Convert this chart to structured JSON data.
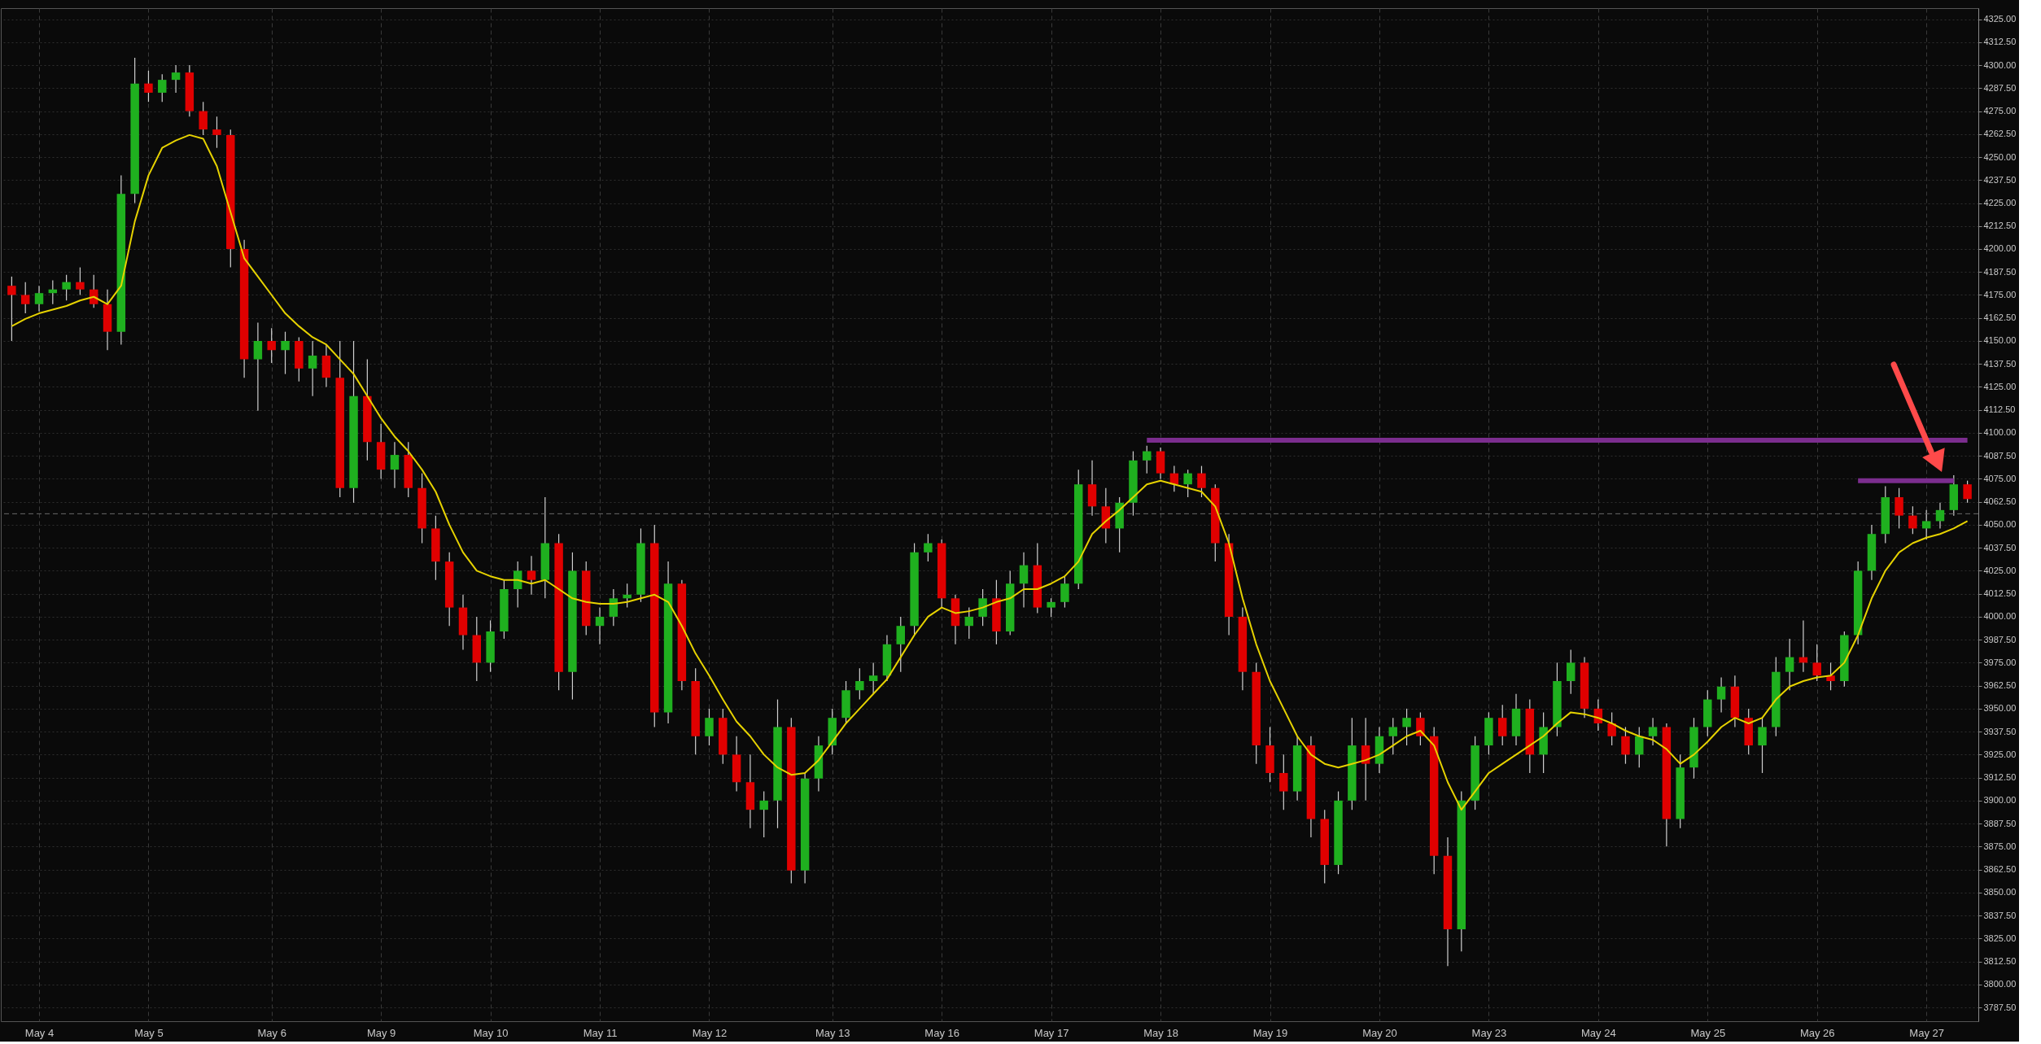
{
  "chart_data": {
    "type": "candlestick",
    "categories": [
      null,
      null,
      "May 4",
      null,
      null,
      null,
      null,
      null,
      null,
      null,
      "May 5",
      null,
      null,
      null,
      null,
      null,
      null,
      null,
      null,
      "May 6",
      null,
      null,
      null,
      null,
      null,
      null,
      null,
      "May 9",
      null,
      null,
      null,
      null,
      null,
      null,
      null,
      "May 10",
      null,
      null,
      null,
      null,
      null,
      null,
      null,
      "May 11",
      null,
      null,
      null,
      null,
      null,
      null,
      null,
      "May 12",
      null,
      null,
      null,
      null,
      null,
      null,
      null,
      null,
      "May 13",
      null,
      null,
      null,
      null,
      null,
      null,
      null,
      "May 16",
      null,
      null,
      null,
      null,
      null,
      null,
      null,
      "May 17",
      null,
      null,
      null,
      null,
      null,
      null,
      null,
      "May 18",
      null,
      null,
      null,
      null,
      null,
      null,
      null,
      "May 19",
      null,
      null,
      null,
      null,
      null,
      null,
      null,
      "May 20",
      null,
      null,
      null,
      null,
      null,
      null,
      null,
      "May 23",
      null,
      null,
      null,
      null,
      null,
      null,
      null,
      "May 24",
      null,
      null,
      null,
      null,
      null,
      null,
      null,
      "May 25",
      null,
      null,
      null,
      null,
      null,
      null,
      null,
      "May 26",
      null,
      null,
      null,
      null,
      null,
      null,
      null,
      "May 27",
      null,
      null,
      null
    ],
    "ohlc": [
      [
        4180,
        4185,
        4150,
        4175
      ],
      [
        4175,
        4182,
        4165,
        4170
      ],
      [
        4170,
        4180,
        4166,
        4176
      ],
      [
        4176,
        4183,
        4170,
        4178
      ],
      [
        4178,
        4186,
        4172,
        4182
      ],
      [
        4182,
        4190,
        4175,
        4178
      ],
      [
        4178,
        4186,
        4168,
        4170
      ],
      [
        4170,
        4178,
        4145,
        4155
      ],
      [
        4155,
        4240,
        4148,
        4230
      ],
      [
        4230,
        4304,
        4225,
        4290
      ],
      [
        4290,
        4297,
        4280,
        4285
      ],
      [
        4285,
        4295,
        4280,
        4292
      ],
      [
        4292,
        4300,
        4285,
        4296
      ],
      [
        4296,
        4300,
        4272,
        4275
      ],
      [
        4275,
        4280,
        4262,
        4265
      ],
      [
        4265,
        4272,
        4255,
        4262
      ],
      [
        4262,
        4265,
        4190,
        4200
      ],
      [
        4200,
        4205,
        4130,
        4140
      ],
      [
        4140,
        4160,
        4112,
        4150
      ],
      [
        4150,
        4157,
        4138,
        4145
      ],
      [
        4145,
        4155,
        4132,
        4150
      ],
      [
        4150,
        4152,
        4128,
        4135
      ],
      [
        4135,
        4150,
        4120,
        4142
      ],
      [
        4142,
        4148,
        4125,
        4130
      ],
      [
        4130,
        4150,
        4065,
        4070
      ],
      [
        4070,
        4150,
        4062,
        4120
      ],
      [
        4120,
        4140,
        4085,
        4095
      ],
      [
        4095,
        4105,
        4075,
        4080
      ],
      [
        4080,
        4095,
        4070,
        4088
      ],
      [
        4088,
        4095,
        4065,
        4070
      ],
      [
        4070,
        4078,
        4040,
        4048
      ],
      [
        4048,
        4055,
        4020,
        4030
      ],
      [
        4030,
        4035,
        3995,
        4005
      ],
      [
        4005,
        4012,
        3982,
        3990
      ],
      [
        3990,
        4000,
        3965,
        3975
      ],
      [
        3975,
        3998,
        3970,
        3992
      ],
      [
        3992,
        4020,
        3988,
        4015
      ],
      [
        4015,
        4030,
        4005,
        4025
      ],
      [
        4025,
        4033,
        4012,
        4020
      ],
      [
        4020,
        4065,
        4010,
        4040
      ],
      [
        4040,
        4045,
        3960,
        3970
      ],
      [
        3970,
        4035,
        3955,
        4025
      ],
      [
        4025,
        4030,
        3990,
        3995
      ],
      [
        3995,
        4005,
        3985,
        4000
      ],
      [
        4000,
        4015,
        3995,
        4010
      ],
      [
        4010,
        4018,
        4005,
        4012
      ],
      [
        4012,
        4048,
        4008,
        4040
      ],
      [
        4040,
        4050,
        3940,
        3948
      ],
      [
        3948,
        4030,
        3942,
        4018
      ],
      [
        4018,
        4020,
        3960,
        3965
      ],
      [
        3965,
        3972,
        3925,
        3935
      ],
      [
        3935,
        3950,
        3930,
        3945
      ],
      [
        3945,
        3950,
        3920,
        3925
      ],
      [
        3925,
        3935,
        3905,
        3910
      ],
      [
        3910,
        3925,
        3885,
        3895
      ],
      [
        3895,
        3905,
        3880,
        3900
      ],
      [
        3900,
        3955,
        3885,
        3940
      ],
      [
        3940,
        3945,
        3855,
        3862
      ],
      [
        3862,
        3915,
        3855,
        3912
      ],
      [
        3912,
        3935,
        3905,
        3930
      ],
      [
        3930,
        3950,
        3925,
        3945
      ],
      [
        3945,
        3965,
        3942,
        3960
      ],
      [
        3960,
        3972,
        3955,
        3965
      ],
      [
        3965,
        3975,
        3958,
        3968
      ],
      [
        3968,
        3990,
        3965,
        3985
      ],
      [
        3985,
        4000,
        3970,
        3995
      ],
      [
        3995,
        4040,
        3990,
        4035
      ],
      [
        4035,
        4045,
        4030,
        4040
      ],
      [
        4040,
        4042,
        4005,
        4010
      ],
      [
        4010,
        4012,
        3985,
        3995
      ],
      [
        3995,
        4005,
        3988,
        4000
      ],
      [
        4000,
        4015,
        3995,
        4010
      ],
      [
        4010,
        4020,
        3985,
        3992
      ],
      [
        3992,
        4025,
        3990,
        4018
      ],
      [
        4018,
        4035,
        4005,
        4028
      ],
      [
        4028,
        4040,
        4002,
        4005
      ],
      [
        4005,
        4010,
        4000,
        4008
      ],
      [
        4008,
        4022,
        4005,
        4018
      ],
      [
        4018,
        4080,
        4015,
        4072
      ],
      [
        4072,
        4085,
        4055,
        4060
      ],
      [
        4060,
        4070,
        4040,
        4048
      ],
      [
        4048,
        4065,
        4035,
        4062
      ],
      [
        4062,
        4090,
        4055,
        4085
      ],
      [
        4085,
        4093,
        4078,
        4090
      ],
      [
        4090,
        4092,
        4075,
        4078
      ],
      [
        4078,
        4082,
        4068,
        4072
      ],
      [
        4072,
        4080,
        4065,
        4078
      ],
      [
        4078,
        4082,
        4065,
        4070
      ],
      [
        4070,
        4072,
        4030,
        4040
      ],
      [
        4040,
        4045,
        3990,
        4000
      ],
      [
        4000,
        4005,
        3960,
        3970
      ],
      [
        3970,
        3975,
        3920,
        3930
      ],
      [
        3930,
        3940,
        3910,
        3915
      ],
      [
        3915,
        3925,
        3895,
        3905
      ],
      [
        3905,
        3935,
        3900,
        3930
      ],
      [
        3930,
        3935,
        3880,
        3890
      ],
      [
        3890,
        3895,
        3855,
        3865
      ],
      [
        3865,
        3905,
        3860,
        3900
      ],
      [
        3900,
        3945,
        3895,
        3930
      ],
      [
        3930,
        3945,
        3900,
        3920
      ],
      [
        3920,
        3940,
        3915,
        3935
      ],
      [
        3935,
        3945,
        3925,
        3940
      ],
      [
        3940,
        3950,
        3930,
        3945
      ],
      [
        3945,
        3948,
        3930,
        3935
      ],
      [
        3935,
        3940,
        3860,
        3870
      ],
      [
        3870,
        3880,
        3810,
        3830
      ],
      [
        3830,
        3905,
        3818,
        3900
      ],
      [
        3900,
        3935,
        3895,
        3930
      ],
      [
        3930,
        3948,
        3925,
        3945
      ],
      [
        3945,
        3952,
        3930,
        3935
      ],
      [
        3935,
        3958,
        3930,
        3950
      ],
      [
        3950,
        3955,
        3915,
        3925
      ],
      [
        3925,
        3948,
        3915,
        3940
      ],
      [
        3940,
        3975,
        3935,
        3965
      ],
      [
        3965,
        3982,
        3958,
        3975
      ],
      [
        3975,
        3978,
        3945,
        3950
      ],
      [
        3950,
        3955,
        3938,
        3942
      ],
      [
        3942,
        3948,
        3930,
        3935
      ],
      [
        3935,
        3940,
        3920,
        3925
      ],
      [
        3925,
        3940,
        3918,
        3935
      ],
      [
        3935,
        3945,
        3930,
        3940
      ],
      [
        3940,
        3942,
        3875,
        3890
      ],
      [
        3890,
        3925,
        3885,
        3918
      ],
      [
        3918,
        3945,
        3912,
        3940
      ],
      [
        3940,
        3960,
        3935,
        3955
      ],
      [
        3955,
        3967,
        3948,
        3962
      ],
      [
        3962,
        3968,
        3940,
        3945
      ],
      [
        3945,
        3950,
        3925,
        3930
      ],
      [
        3930,
        3945,
        3915,
        3940
      ],
      [
        3940,
        3978,
        3935,
        3970
      ],
      [
        3970,
        3988,
        3960,
        3978
      ],
      [
        3978,
        3998,
        3970,
        3975
      ],
      [
        3975,
        3985,
        3965,
        3968
      ],
      [
        3968,
        3975,
        3960,
        3965
      ],
      [
        3965,
        3992,
        3962,
        3990
      ],
      [
        3990,
        4030,
        3985,
        4025
      ],
      [
        4025,
        4050,
        4020,
        4045
      ],
      [
        4045,
        4071,
        4040,
        4065
      ],
      [
        4065,
        4070,
        4048,
        4055
      ],
      [
        4055,
        4060,
        4045,
        4048
      ],
      [
        4048,
        4058,
        4042,
        4052
      ],
      [
        4052,
        4062,
        4048,
        4058
      ],
      [
        4058,
        4077,
        4055,
        4072
      ],
      [
        4072,
        4074,
        4062,
        4064
      ]
    ],
    "series": [
      {
        "type": "line",
        "color": "#e6d200",
        "values": [
          4158,
          4162,
          4165,
          4167,
          4169,
          4172,
          4174,
          4170,
          4180,
          4215,
          4240,
          4255,
          4259,
          4262,
          4260,
          4245,
          4220,
          4195,
          4185,
          4175,
          4165,
          4158,
          4152,
          4148,
          4140,
          4132,
          4120,
          4108,
          4098,
          4090,
          4080,
          4068,
          4050,
          4035,
          4025,
          4022,
          4020,
          4020,
          4018,
          4020,
          4015,
          4010,
          4008,
          4007,
          4007,
          4008,
          4010,
          4012,
          4008,
          3995,
          3980,
          3968,
          3955,
          3943,
          3935,
          3925,
          3918,
          3914,
          3915,
          3922,
          3932,
          3942,
          3950,
          3958,
          3966,
          3978,
          3990,
          4000,
          4005,
          4002,
          4003,
          4005,
          4008,
          4010,
          4015,
          4015,
          4018,
          4022,
          4030,
          4045,
          4052,
          4058,
          4065,
          4072,
          4074,
          4072,
          4070,
          4068,
          4060,
          4040,
          4010,
          3985,
          3965,
          3950,
          3935,
          3925,
          3920,
          3918,
          3920,
          3922,
          3925,
          3930,
          3935,
          3938,
          3930,
          3910,
          3895,
          3905,
          3915,
          3920,
          3925,
          3930,
          3935,
          3942,
          3948,
          3947,
          3945,
          3942,
          3938,
          3935,
          3933,
          3928,
          3920,
          3925,
          3932,
          3940,
          3945,
          3942,
          3945,
          3955,
          3962,
          3965,
          3967,
          3968,
          3975,
          3990,
          4010,
          4025,
          4035,
          4040,
          4043,
          4045,
          4048,
          4052
        ]
      },
      {
        "type": "line",
        "color": "#7b2d8e",
        "values": [
          null,
          null,
          null,
          null,
          null,
          null,
          null,
          null,
          null,
          null,
          null,
          null,
          null,
          null,
          null,
          null,
          null,
          null,
          null,
          null,
          null,
          null,
          null,
          null,
          null,
          null,
          null,
          null,
          null,
          null,
          null,
          null,
          null,
          null,
          null,
          null,
          null,
          null,
          null,
          null,
          null,
          null,
          null,
          null,
          null,
          null,
          null,
          null,
          null,
          null,
          null,
          null,
          null,
          null,
          null,
          null,
          null,
          null,
          null,
          null,
          null,
          null,
          null,
          null,
          null,
          null,
          null,
          null,
          null,
          null,
          null,
          null,
          null,
          null,
          null,
          null,
          null,
          null,
          null,
          null,
          null,
          null,
          null,
          4096,
          4096,
          4096,
          4096,
          4096,
          4096,
          4096,
          4096,
          4096,
          4096,
          4096,
          4096,
          4096,
          4096,
          4096,
          4096,
          4096,
          4096,
          4096,
          4096,
          4096,
          4096,
          4096,
          4096,
          4096,
          4096,
          4096,
          4096,
          4096,
          4096,
          4096,
          4096,
          4096,
          4096,
          4096,
          4096,
          4096,
          4096,
          4096,
          4096,
          4096,
          4096,
          4096,
          4096,
          4096,
          4096,
          4096,
          4096,
          4096,
          4096,
          4096,
          4096,
          4096,
          4096,
          4096,
          4096,
          4096,
          4096,
          4096,
          4096,
          4096
        ]
      },
      {
        "type": "line",
        "color": "#7b2d8e",
        "values": [
          null,
          null,
          null,
          null,
          null,
          null,
          null,
          null,
          null,
          null,
          null,
          null,
          null,
          null,
          null,
          null,
          null,
          null,
          null,
          null,
          null,
          null,
          null,
          null,
          null,
          null,
          null,
          null,
          null,
          null,
          null,
          null,
          null,
          null,
          null,
          null,
          null,
          null,
          null,
          null,
          null,
          null,
          null,
          null,
          null,
          null,
          null,
          null,
          null,
          null,
          null,
          null,
          null,
          null,
          null,
          null,
          null,
          null,
          null,
          null,
          null,
          null,
          null,
          null,
          null,
          null,
          null,
          null,
          null,
          null,
          null,
          null,
          null,
          null,
          null,
          null,
          null,
          null,
          null,
          null,
          null,
          null,
          null,
          null,
          null,
          null,
          null,
          null,
          null,
          null,
          null,
          null,
          null,
          null,
          null,
          null,
          null,
          null,
          null,
          null,
          null,
          null,
          null,
          null,
          null,
          null,
          null,
          null,
          null,
          null,
          null,
          null,
          null,
          null,
          null,
          null,
          null,
          null,
          null,
          null,
          null,
          null,
          null,
          null,
          null,
          null,
          null,
          null,
          null,
          null,
          null,
          null,
          null,
          null,
          null,
          4074,
          4074,
          4074,
          4074,
          4074,
          4074,
          4074,
          4074,
          null
        ]
      }
    ],
    "ref_lines": [
      {
        "axis": "y",
        "value": 4056,
        "color": "#6a6a6a",
        "line_style": "dashed"
      }
    ],
    "ylim": [
      3780,
      4331
    ],
    "yticks": [
      {
        "value": 3787.5,
        "label": "3787.50"
      },
      {
        "value": 3800,
        "label": "3800.00"
      },
      {
        "value": 3812.5,
        "label": "3812.50"
      },
      {
        "value": 3825,
        "label": "3825.00"
      },
      {
        "value": 3837.5,
        "label": "3837.50"
      },
      {
        "value": 3850,
        "label": "3850.00"
      },
      {
        "value": 3862.5,
        "label": "3862.50"
      },
      {
        "value": 3875,
        "label": "3875.00"
      },
      {
        "value": 3887.5,
        "label": "3887.50"
      },
      {
        "value": 3900,
        "label": "3900.00"
      },
      {
        "value": 3912.5,
        "label": "3912.50"
      },
      {
        "value": 3925,
        "label": "3925.00"
      },
      {
        "value": 3937.5,
        "label": "3937.50"
      },
      {
        "value": 3950,
        "label": "3950.00"
      },
      {
        "value": 3962.5,
        "label": "3962.50"
      },
      {
        "value": 3975,
        "label": "3975.00"
      },
      {
        "value": 3987.5,
        "label": "3987.50"
      },
      {
        "value": 4000,
        "label": "4000.00"
      },
      {
        "value": 4012.5,
        "label": "4012.50"
      },
      {
        "value": 4025,
        "label": "4025.00"
      },
      {
        "value": 4037.5,
        "label": "4037.50"
      },
      {
        "value": 4050,
        "label": "4050.00"
      },
      {
        "value": 4062.5,
        "label": "4062.50"
      },
      {
        "value": 4075,
        "label": "4075.00"
      },
      {
        "value": 4087.5,
        "label": "4087.50"
      },
      {
        "value": 4100,
        "label": "4100.00"
      },
      {
        "value": 4112.5,
        "label": "4112.50"
      },
      {
        "value": 4125,
        "label": "4125.00"
      },
      {
        "value": 4137.5,
        "label": "4137.50"
      },
      {
        "value": 4150,
        "label": "4150.00"
      },
      {
        "value": 4162.5,
        "label": "4162.50"
      },
      {
        "value": 4175,
        "label": "4175.00"
      },
      {
        "value": 4187.5,
        "label": "4187.50"
      },
      {
        "value": 4200,
        "label": "4200.00"
      },
      {
        "value": 4212.5,
        "label": "4212.50"
      },
      {
        "value": 4225,
        "label": "4225.00"
      },
      {
        "value": 4237.5,
        "label": "4237.50"
      },
      {
        "value": 4250,
        "label": "4250.00"
      },
      {
        "value": 4262.5,
        "label": "4262.50"
      },
      {
        "value": 4275,
        "label": "4275.00"
      },
      {
        "value": 4287.5,
        "label": "4287.50"
      },
      {
        "value": 4300,
        "label": "4300.00"
      },
      {
        "value": 4312.5,
        "label": "4312.50"
      },
      {
        "value": 4325,
        "label": "4325.00"
      }
    ],
    "grid": true
  }
}
